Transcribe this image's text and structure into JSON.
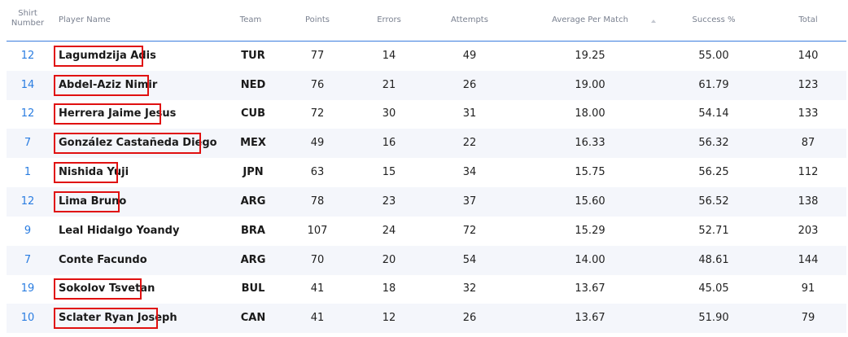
{
  "table": {
    "headers": {
      "shirt_line1": "Shirt",
      "shirt_line2": "Number",
      "player": "Player Name",
      "team": "Team",
      "points": "Points",
      "errors": "Errors",
      "attempts": "Attempts",
      "avg": "Average Per Match",
      "success": "Success %",
      "total": "Total"
    },
    "sort_icon": "sort-up-icon",
    "accent_color": "#2a7de1",
    "highlight_color": "#e01010",
    "rows": [
      {
        "shirt": "12",
        "player": "Lagumdzija Adis",
        "team": "TUR",
        "points": "77",
        "errors": "14",
        "attempts": "49",
        "avg": "19.25",
        "success": "55.00",
        "total": "140",
        "highlighted": true
      },
      {
        "shirt": "14",
        "player": "Abdel-Aziz Nimir",
        "team": "NED",
        "points": "76",
        "errors": "21",
        "attempts": "26",
        "avg": "19.00",
        "success": "61.79",
        "total": "123",
        "highlighted": true
      },
      {
        "shirt": "12",
        "player": "Herrera Jaime Jesus",
        "team": "CUB",
        "points": "72",
        "errors": "30",
        "attempts": "31",
        "avg": "18.00",
        "success": "54.14",
        "total": "133",
        "highlighted": true
      },
      {
        "shirt": "7",
        "player": "González Castañeda Diego",
        "team": "MEX",
        "points": "49",
        "errors": "16",
        "attempts": "22",
        "avg": "16.33",
        "success": "56.32",
        "total": "87",
        "highlighted": true
      },
      {
        "shirt": "1",
        "player": "Nishida Yuji",
        "team": "JPN",
        "points": "63",
        "errors": "15",
        "attempts": "34",
        "avg": "15.75",
        "success": "56.25",
        "total": "112",
        "highlighted": true
      },
      {
        "shirt": "12",
        "player": "Lima Bruno",
        "team": "ARG",
        "points": "78",
        "errors": "23",
        "attempts": "37",
        "avg": "15.60",
        "success": "56.52",
        "total": "138",
        "highlighted": true
      },
      {
        "shirt": "9",
        "player": "Leal Hidalgo Yoandy",
        "team": "BRA",
        "points": "107",
        "errors": "24",
        "attempts": "72",
        "avg": "15.29",
        "success": "52.71",
        "total": "203",
        "highlighted": false
      },
      {
        "shirt": "7",
        "player": "Conte Facundo",
        "team": "ARG",
        "points": "70",
        "errors": "20",
        "attempts": "54",
        "avg": "14.00",
        "success": "48.61",
        "total": "144",
        "highlighted": false
      },
      {
        "shirt": "19",
        "player": "Sokolov Tsvetan",
        "team": "BUL",
        "points": "41",
        "errors": "18",
        "attempts": "32",
        "avg": "13.67",
        "success": "45.05",
        "total": "91",
        "highlighted": true
      },
      {
        "shirt": "10",
        "player": "Sclater Ryan Joseph",
        "team": "CAN",
        "points": "41",
        "errors": "12",
        "attempts": "26",
        "avg": "13.67",
        "success": "51.90",
        "total": "79",
        "highlighted": true
      }
    ]
  }
}
